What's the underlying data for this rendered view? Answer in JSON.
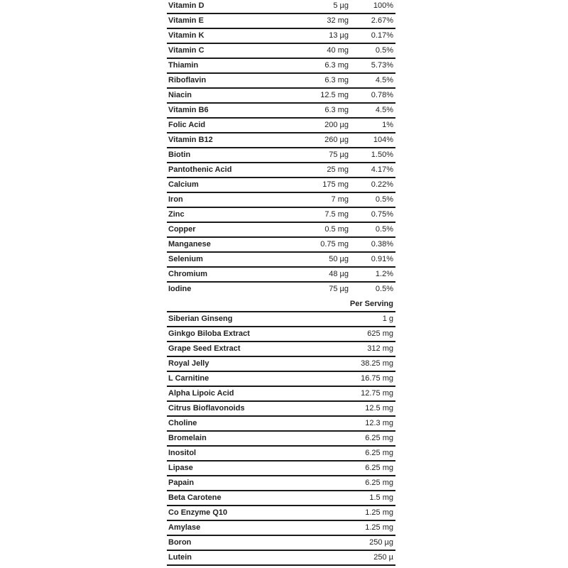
{
  "vitamins_minerals": [
    {
      "name": "Vitamin D",
      "amount": "5 µg",
      "percent": "100%"
    },
    {
      "name": "Vitamin E",
      "amount": "32 mg",
      "percent": "2.67%"
    },
    {
      "name": "Vitamin K",
      "amount": "13 µg",
      "percent": "0.17%"
    },
    {
      "name": "Vitamin C",
      "amount": "40 mg",
      "percent": "0.5%"
    },
    {
      "name": "Thiamin",
      "amount": "6.3 mg",
      "percent": "5.73%"
    },
    {
      "name": "Riboflavin",
      "amount": "6.3 mg",
      "percent": "4.5%"
    },
    {
      "name": "Niacin",
      "amount": "12.5 mg",
      "percent": "0.78%"
    },
    {
      "name": "Vitamin B6",
      "amount": "6.3 mg",
      "percent": "4.5%"
    },
    {
      "name": "Folic Acid",
      "amount": "200 µg",
      "percent": "1%"
    },
    {
      "name": "Vitamin B12",
      "amount": "260 µg",
      "percent": "104%"
    },
    {
      "name": "Biotin",
      "amount": "75 µg",
      "percent": "1.50%"
    },
    {
      "name": "Pantothenic Acid",
      "amount": "25 mg",
      "percent": "4.17%"
    },
    {
      "name": "Calcium",
      "amount": "175 mg",
      "percent": "0.22%"
    },
    {
      "name": "Iron",
      "amount": "7 mg",
      "percent": "0.5%"
    },
    {
      "name": "Zinc",
      "amount": "7.5 mg",
      "percent": "0.75%"
    },
    {
      "name": "Copper",
      "amount": "0.5 mg",
      "percent": "0.5%"
    },
    {
      "name": "Manganese",
      "amount": "0.75 mg",
      "percent": "0.38%"
    },
    {
      "name": "Selenium",
      "amount": "50 µg",
      "percent": "0.91%"
    },
    {
      "name": "Chromium",
      "amount": "48 µg",
      "percent": "1.2%"
    },
    {
      "name": "Iodine",
      "amount": "75 µg",
      "percent": "0.5%"
    }
  ],
  "per_serving_header": "Per Serving",
  "other_ingredients": [
    {
      "name": "Siberian Ginseng",
      "amount": "1 g"
    },
    {
      "name": "Ginkgo Biloba Extract",
      "amount": "625 mg"
    },
    {
      "name": "Grape Seed Extract",
      "amount": "312 mg"
    },
    {
      "name": "Royal Jelly",
      "amount": "38.25 mg"
    },
    {
      "name": "L Carnitine",
      "amount": "16.75 mg"
    },
    {
      "name": "Alpha Lipoic Acid",
      "amount": "12.75 mg"
    },
    {
      "name": "Citrus Bioflavonoids",
      "amount": "12.5 mg"
    },
    {
      "name": "Choline",
      "amount": "12.3 mg"
    },
    {
      "name": "Bromelain",
      "amount": "6.25 mg"
    },
    {
      "name": "Inositol",
      "amount": "6.25 mg"
    },
    {
      "name": "Lipase",
      "amount": "6.25 mg"
    },
    {
      "name": "Papain",
      "amount": "6.25 mg"
    },
    {
      "name": "Beta Carotene",
      "amount": "1.5 mg"
    },
    {
      "name": "Co Enzyme Q10",
      "amount": "1.25 mg"
    },
    {
      "name": "Amylase",
      "amount": "1.25 mg"
    },
    {
      "name": "Boron",
      "amount": "250 µg"
    },
    {
      "name": "Lutein",
      "amount": "250 µ"
    }
  ]
}
